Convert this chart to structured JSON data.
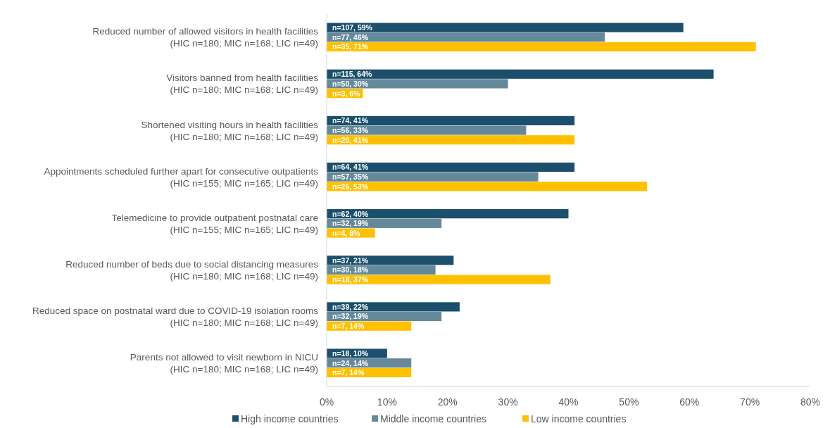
{
  "chart_data": {
    "type": "bar",
    "orientation": "horizontal",
    "categories": [
      "Reduced number of allowed visitors in health facilities\n(HIC n=180; MIC n=168; LIC n=49)",
      "Visitors banned from health facilities\n(HIC n=180; MIC n=168; LIC n=49)",
      "Shortened visiting hours in health facilities\n(HIC n=180; MIC n=168; LIC n=49)",
      "Appointments scheduled further apart for consecutive outpatients\n(HIC n=155; MIC n=165; LIC n=49)",
      "Telemedicine to provide outpatient postnatal care\n(HIC n=155; MIC n=165; LIC n=49)",
      "Reduced number of beds due to social distancing measures\n(HIC n=180; MIC n=168; LIC n=49)",
      "Reduced space on postnatal ward due to COVID-19 isolation rooms\n(HIC n=180; MIC n=168; LIC n=49)",
      "Parents not allowed to visit newborn in NICU\n(HIC n=180; MIC n=168; LIC n=49)"
    ],
    "series": [
      {
        "name": "High income countries",
        "color": "#1b4f6b",
        "values": [
          59,
          64,
          41,
          41,
          40,
          21,
          22,
          10
        ],
        "value_labels": [
          "n=107, 59%",
          "n=115, 64%",
          "n=74, 41%",
          "n=64, 41%",
          "n=62, 40%",
          "n=37, 21%",
          "n=39, 22%",
          "n=18, 10%"
        ]
      },
      {
        "name": "Middle income countries",
        "color": "#65899a",
        "values": [
          46,
          30,
          33,
          35,
          19,
          18,
          19,
          14
        ],
        "value_labels": [
          "n=77, 46%",
          "n=50, 30%",
          "n=56, 33%",
          "n=57, 35%",
          "n=32, 19%",
          "n=30, 18%",
          "n=32, 19%",
          "n=24, 14%"
        ]
      },
      {
        "name": "Low income countries",
        "color": "#ffc000",
        "values": [
          71,
          6,
          41,
          53,
          8,
          37,
          14,
          14
        ],
        "value_labels": [
          "n=35, 71%",
          "n=3, 6%",
          "n=20, 41%",
          "n=26, 53%",
          "n=4, 8%",
          "n=18, 37%",
          "n=7, 14%",
          "n=7, 14%"
        ]
      }
    ],
    "xlim": [
      0,
      80
    ],
    "xticks": [
      {
        "value": 0,
        "label": "0%"
      },
      {
        "value": 10,
        "label": "10%"
      },
      {
        "value": 20,
        "label": "20%"
      },
      {
        "value": 30,
        "label": "30%"
      },
      {
        "value": 40,
        "label": "40%"
      },
      {
        "value": 50,
        "label": "50%"
      },
      {
        "value": 60,
        "label": "60%"
      },
      {
        "value": 70,
        "label": "70%"
      },
      {
        "value": 80,
        "label": "80%"
      }
    ],
    "grid": false,
    "legend": "bottom"
  }
}
